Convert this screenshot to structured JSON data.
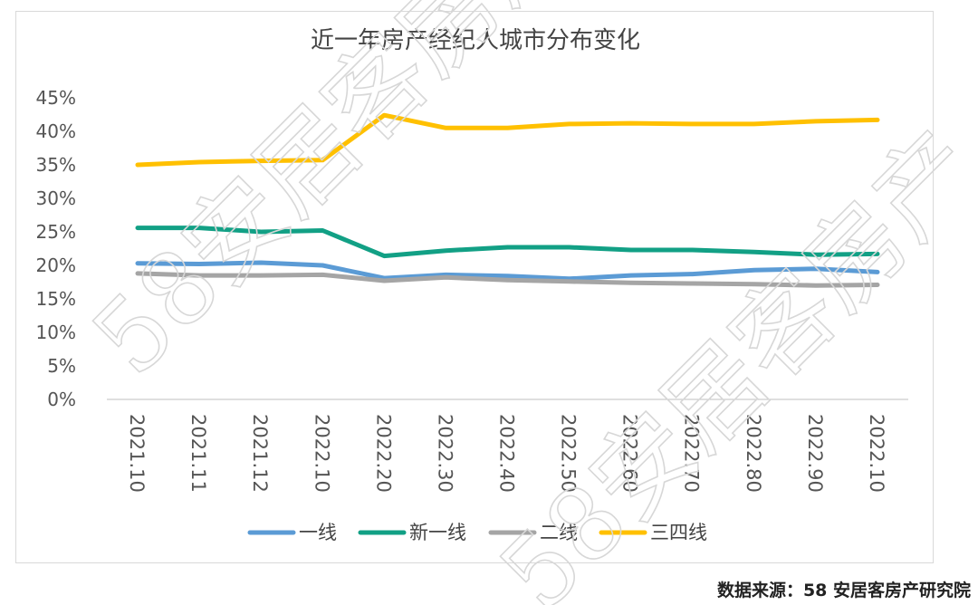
{
  "source_note": "数据来源：58 安居客房产研究院",
  "watermark": "58安居客房产",
  "chart_data": {
    "type": "line",
    "title": "近一年房产经纪人城市分布变化",
    "xlabel": "",
    "ylabel": "",
    "ylim": [
      0,
      45
    ],
    "yticks": [
      "0%",
      "5%",
      "10%",
      "15%",
      "20%",
      "25%",
      "30%",
      "35%",
      "40%",
      "45%"
    ],
    "categories": [
      "2021.10",
      "2021.11",
      "2021.12",
      "2022.10",
      "2022.20",
      "2022.30",
      "2022.40",
      "2022.50",
      "2022.60",
      "2022.70",
      "2022.80",
      "2022.90",
      "2022.10"
    ],
    "grid": false,
    "legend_position": "bottom",
    "series": [
      {
        "name": "一线",
        "color": "#5b9bd5",
        "values": [
          20.3,
          20.2,
          20.4,
          20.0,
          18.1,
          18.6,
          18.4,
          18.0,
          18.5,
          18.7,
          19.3,
          19.5,
          19.0
        ]
      },
      {
        "name": "新一线",
        "color": "#12a085",
        "values": [
          25.6,
          25.6,
          25.0,
          25.2,
          21.4,
          22.2,
          22.7,
          22.7,
          22.3,
          22.3,
          22.0,
          21.6,
          21.7
        ]
      },
      {
        "name": "二线",
        "color": "#a5a5a5",
        "values": [
          18.8,
          18.5,
          18.5,
          18.6,
          17.7,
          18.2,
          17.8,
          17.6,
          17.4,
          17.3,
          17.2,
          17.0,
          17.1
        ]
      },
      {
        "name": "三四线",
        "color": "#ffc000",
        "values": [
          35.0,
          35.4,
          35.6,
          35.7,
          42.4,
          40.5,
          40.5,
          41.1,
          41.2,
          41.1,
          41.1,
          41.5,
          41.7
        ]
      }
    ]
  }
}
